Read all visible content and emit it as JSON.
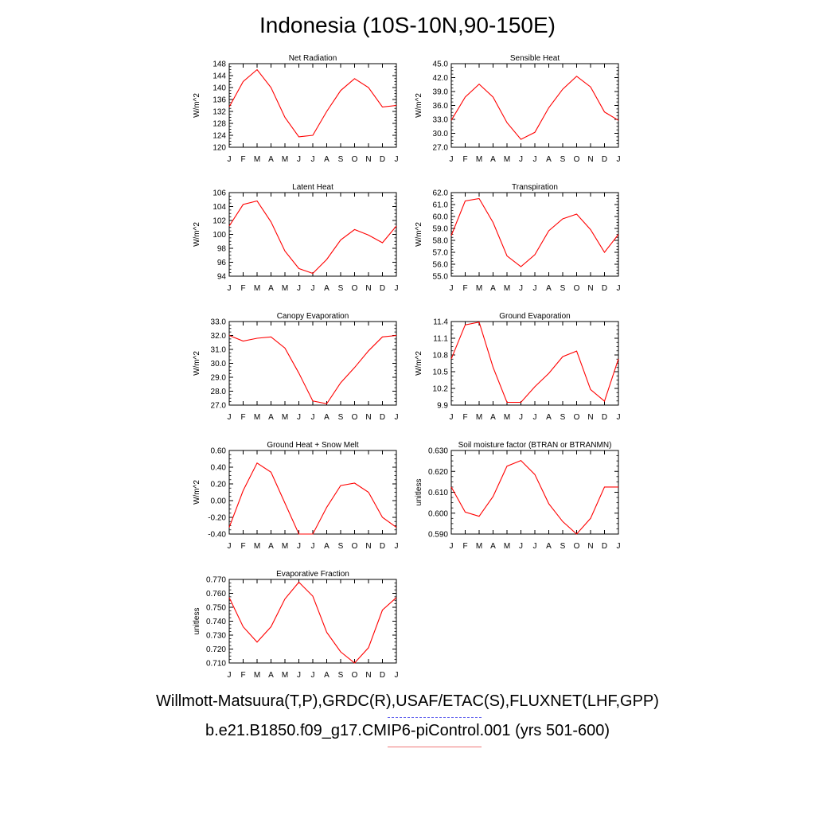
{
  "title": "Indonesia (10S-10N,90-150E)",
  "footer": {
    "obs_label": "Willmott-Matsuura(T,P),GRDC(R),USAF/ETAC(S),FLUXNET(LHF,GPP)",
    "case_label": "b.e21.B1850.f09_g17.CMIP6-piControl.001 (yrs 501-600)"
  },
  "colors": {
    "series": "#ff0000",
    "obs_dash": "#6666ee",
    "case_line": "#ee7777"
  },
  "chart_data": [
    {
      "type": "line",
      "title": "Net Radiation",
      "ylabel": "W/m^2",
      "ylim": [
        120,
        148
      ],
      "yticks": [
        "120",
        "124",
        "128",
        "132",
        "136",
        "140",
        "144",
        "148"
      ],
      "categories": [
        "J",
        "F",
        "M",
        "A",
        "M",
        "J",
        "J",
        "A",
        "S",
        "O",
        "N",
        "D",
        "J"
      ],
      "values": [
        133.5,
        142,
        146,
        140,
        130,
        123.5,
        124,
        132,
        139,
        143,
        140,
        133.5,
        134
      ]
    },
    {
      "type": "line",
      "title": "Sensible Heat",
      "ylabel": "W/m^2",
      "ylim": [
        27,
        45
      ],
      "yticks": [
        "27.0",
        "30.0",
        "33.0",
        "36.0",
        "39.0",
        "42.0",
        "45.0"
      ],
      "categories": [
        "J",
        "F",
        "M",
        "A",
        "M",
        "J",
        "J",
        "A",
        "S",
        "O",
        "N",
        "D",
        "J"
      ],
      "values": [
        32.8,
        37.8,
        40.6,
        37.8,
        32.3,
        28.7,
        30.2,
        35.5,
        39.5,
        42.3,
        40,
        34.6,
        32.8
      ]
    },
    {
      "type": "line",
      "title": "Latent Heat",
      "ylabel": "W/m^2",
      "ylim": [
        94,
        106
      ],
      "yticks": [
        "94",
        "96",
        "98",
        "100",
        "102",
        "104",
        "106"
      ],
      "categories": [
        "J",
        "F",
        "M",
        "A",
        "M",
        "J",
        "J",
        "A",
        "S",
        "O",
        "N",
        "D",
        "J"
      ],
      "values": [
        101.2,
        104.3,
        104.8,
        101.8,
        97.6,
        95.1,
        94.4,
        96.4,
        99.2,
        100.7,
        99.9,
        98.8,
        101.2
      ]
    },
    {
      "type": "line",
      "title": "Transpiration",
      "ylabel": "W/m^2",
      "ylim": [
        55,
        62
      ],
      "yticks": [
        "55.0",
        "56.0",
        "57.0",
        "58.0",
        "59.0",
        "60.0",
        "61.0",
        "62.0"
      ],
      "categories": [
        "J",
        "F",
        "M",
        "A",
        "M",
        "J",
        "J",
        "A",
        "S",
        "O",
        "N",
        "D",
        "J"
      ],
      "values": [
        58.4,
        61.3,
        61.5,
        59.5,
        56.7,
        55.8,
        56.8,
        58.8,
        59.8,
        60.2,
        58.9,
        57,
        58.5
      ]
    },
    {
      "type": "line",
      "title": "Canopy Evaporation",
      "ylabel": "W/m^2",
      "ylim": [
        27,
        33
      ],
      "yticks": [
        "27.0",
        "28.0",
        "29.0",
        "30.0",
        "31.0",
        "32.0",
        "33.0"
      ],
      "categories": [
        "J",
        "F",
        "M",
        "A",
        "M",
        "J",
        "J",
        "A",
        "S",
        "O",
        "N",
        "D",
        "J"
      ],
      "values": [
        32,
        31.6,
        31.8,
        31.9,
        31.1,
        29.3,
        27.3,
        27.1,
        28.6,
        29.7,
        30.9,
        31.9,
        32
      ]
    },
    {
      "type": "line",
      "title": "Ground Evaporation",
      "ylabel": "W/m^2",
      "ylim": [
        9.9,
        11.4
      ],
      "yticks": [
        "9.9",
        "10.2",
        "10.5",
        "10.8",
        "11.1",
        "11.4"
      ],
      "categories": [
        "J",
        "F",
        "M",
        "A",
        "M",
        "J",
        "J",
        "A",
        "S",
        "O",
        "N",
        "D",
        "J"
      ],
      "values": [
        10.73,
        11.34,
        11.39,
        10.58,
        9.95,
        9.95,
        10.23,
        10.47,
        10.77,
        10.87,
        10.18,
        9.97,
        10.73
      ]
    },
    {
      "type": "line",
      "title": "Ground Heat + Snow Melt",
      "ylabel": "W/m^2",
      "ylim": [
        -0.4,
        0.6
      ],
      "yticks": [
        "-0.40",
        "-0.20",
        "0.00",
        "0.20",
        "0.40",
        "0.60"
      ],
      "categories": [
        "J",
        "F",
        "M",
        "A",
        "M",
        "J",
        "J",
        "A",
        "S",
        "O",
        "N",
        "D",
        "J"
      ],
      "values": [
        -0.32,
        0.12,
        0.45,
        0.34,
        -0.03,
        -0.4,
        -0.4,
        -0.08,
        0.18,
        0.21,
        0.1,
        -0.2,
        -0.32
      ]
    },
    {
      "type": "line",
      "title": "Soil moisture factor (BTRAN or BTRANMN)",
      "ylabel": "unitless",
      "ylim": [
        0.59,
        0.63
      ],
      "yticks": [
        "0.590",
        "0.600",
        "0.610",
        "0.620",
        "0.630"
      ],
      "categories": [
        "J",
        "F",
        "M",
        "A",
        "M",
        "J",
        "J",
        "A",
        "S",
        "O",
        "N",
        "D",
        "J"
      ],
      "values": [
        0.6125,
        0.6005,
        0.5985,
        0.608,
        0.6225,
        0.6252,
        0.6185,
        0.6045,
        0.596,
        0.59,
        0.5975,
        0.6125,
        0.6125
      ]
    },
    {
      "type": "line",
      "title": "Evaporative Fraction",
      "ylabel": "unitless",
      "ylim": [
        0.71,
        0.77
      ],
      "yticks": [
        "0.710",
        "0.720",
        "0.730",
        "0.740",
        "0.750",
        "0.760",
        "0.770"
      ],
      "categories": [
        "J",
        "F",
        "M",
        "A",
        "M",
        "J",
        "J",
        "A",
        "S",
        "O",
        "N",
        "D",
        "J"
      ],
      "values": [
        0.757,
        0.736,
        0.725,
        0.736,
        0.756,
        0.768,
        0.758,
        0.732,
        0.718,
        0.71,
        0.721,
        0.748,
        0.757
      ]
    }
  ]
}
